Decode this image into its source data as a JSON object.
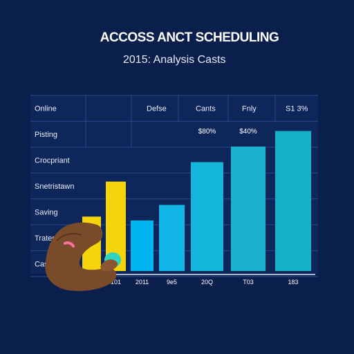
{
  "chart_data": {
    "type": "bar",
    "title": "ACCOSS ANCT SCHEDULING",
    "subtitle": "2015: Analysis Casts",
    "column_headers": [
      "Online",
      "Defse",
      "Cants",
      "Fnly",
      "S1 3%"
    ],
    "row_labels": [
      "Pisting",
      "Crocpriant",
      "Snetristawn",
      "Saving",
      "Tratente",
      "Cas"
    ],
    "categories": [
      "",
      "101",
      "2011",
      "9e5",
      "20Q",
      "T03",
      "183"
    ],
    "values": [
      14,
      23,
      13,
      17,
      28,
      32,
      36
    ],
    "data_labels": [
      "",
      "",
      "",
      "",
      "$80%",
      "$40%",
      ""
    ],
    "colors": [
      "#f6d40c",
      "#f6d40c",
      "#00b4ef",
      "#12b6e6",
      "#13b5d8",
      "#1bb2cf",
      "#16b1c8"
    ],
    "ylim": [
      0,
      40
    ],
    "grid": true
  }
}
